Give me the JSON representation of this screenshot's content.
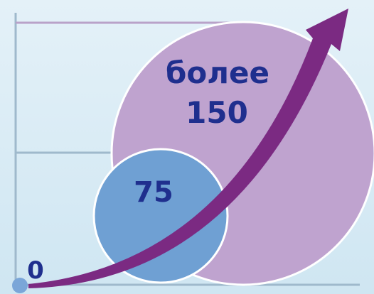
{
  "labels": {
    "upper_word": "более",
    "upper_value": "150",
    "middle_value": "75",
    "origin_value": "0"
  }
}
